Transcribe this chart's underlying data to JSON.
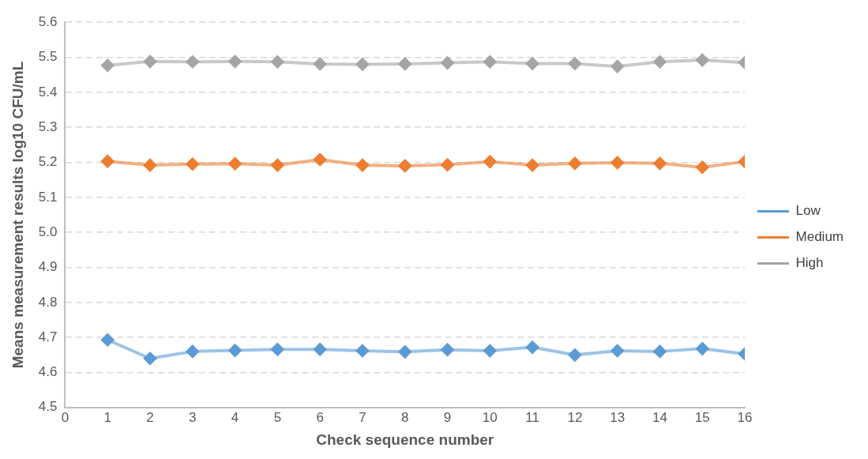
{
  "chart_data": {
    "type": "line",
    "xlabel": "Check sequence number",
    "ylabel": "Means measurement results log10 CFU/mL",
    "x": [
      1,
      2,
      3,
      4,
      5,
      6,
      7,
      8,
      9,
      10,
      11,
      12,
      13,
      14,
      15,
      16
    ],
    "series": [
      {
        "name": "Low",
        "color": "#5b9bd5",
        "values": [
          4.693,
          4.64,
          4.66,
          4.663,
          4.666,
          4.666,
          4.662,
          4.659,
          4.665,
          4.662,
          4.672,
          4.65,
          4.662,
          4.66,
          4.668,
          4.653
        ]
      },
      {
        "name": "Medium",
        "color": "#ed7d31",
        "values": [
          5.203,
          5.192,
          5.195,
          5.196,
          5.192,
          5.208,
          5.192,
          5.19,
          5.193,
          5.202,
          5.192,
          5.197,
          5.199,
          5.197,
          5.186,
          5.202
        ]
      },
      {
        "name": "High",
        "color": "#a5a5a5",
        "values": [
          5.477,
          5.488,
          5.487,
          5.488,
          5.487,
          5.481,
          5.48,
          5.481,
          5.484,
          5.487,
          5.482,
          5.482,
          5.474,
          5.487,
          5.492,
          5.485
        ]
      }
    ],
    "xlim": [
      0,
      16
    ],
    "xticks": [
      0,
      1,
      2,
      3,
      4,
      5,
      6,
      7,
      8,
      9,
      10,
      11,
      12,
      13,
      14,
      15,
      16
    ],
    "ylim": [
      4.5,
      5.6
    ],
    "yticks": [
      4.5,
      4.6,
      4.7,
      4.8,
      4.9,
      {
        "value": 5,
        "label": "5.0"
      },
      5.1,
      5.2,
      5.3,
      5.4,
      5.5,
      5.6
    ],
    "grid": "y",
    "legend": "right",
    "marker": "diamond",
    "line_style": "solid"
  }
}
